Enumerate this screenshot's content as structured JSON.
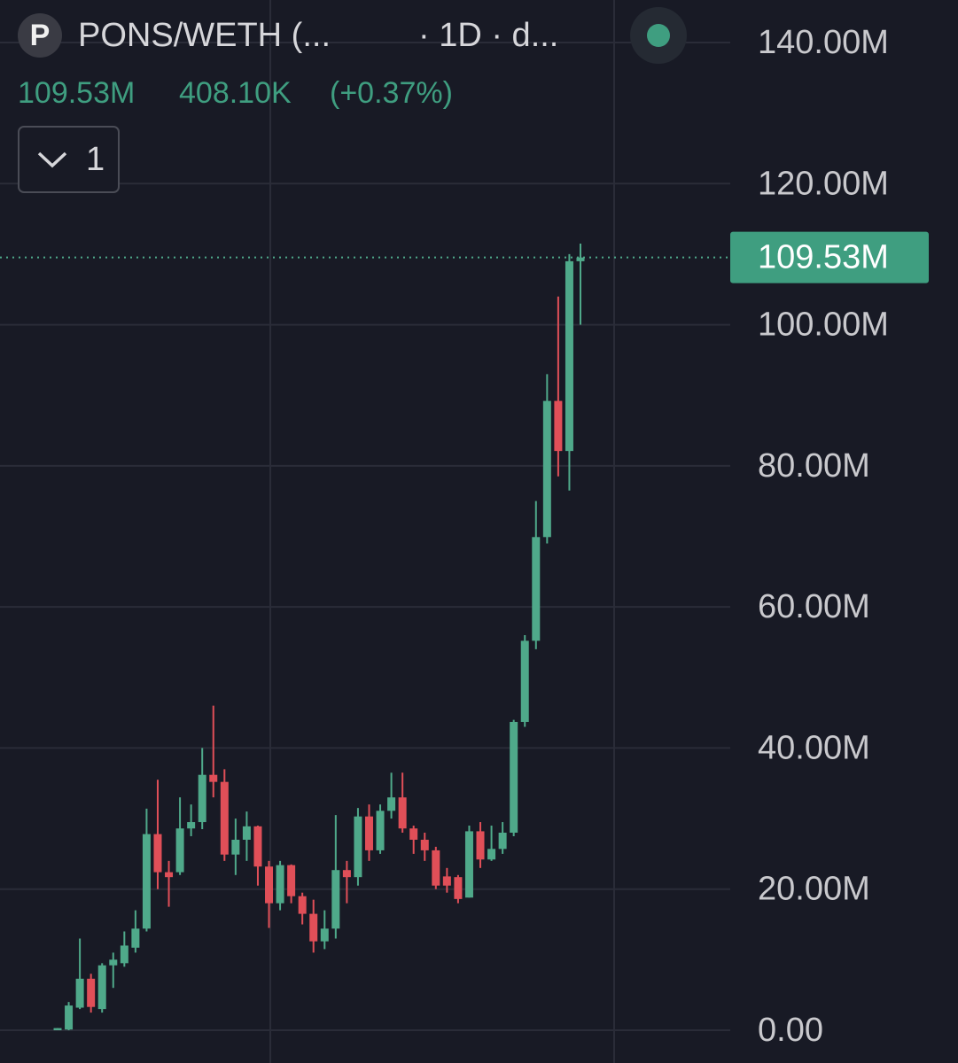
{
  "chart_data": {
    "type": "candlestick",
    "header": {
      "symbol": "PONS/WETH (...",
      "interval": "· 1D · d...",
      "price": "109.53M",
      "change": "408.10K",
      "change_pct": "(+0.37%)",
      "indicator_count": "1"
    },
    "logo": "P",
    "open": [
      0,
      0.1,
      3.2,
      7.3,
      3,
      9.2,
      9.5,
      11.7,
      14.4,
      27.8,
      22.4,
      22.4,
      28.6,
      29.5,
      36.2,
      35.2,
      24.9,
      27,
      28.9,
      23.2,
      18,
      23.4,
      19,
      16.5,
      12.6,
      14.4,
      22.7,
      21.7,
      30.3,
      25.5,
      31.1,
      33,
      28.6,
      27,
      25.5,
      21.8,
      21.7,
      18.8,
      28.2,
      24.2,
      25.7,
      28,
      43.7,
      55.2,
      69.9,
      89.2,
      82.1,
      109
    ],
    "high": [
      0.3,
      4,
      13,
      8,
      9.5,
      11,
      14,
      17,
      31.4,
      35.5,
      24,
      33,
      32,
      40,
      46,
      37,
      30,
      31,
      29,
      24,
      24,
      23.5,
      19.5,
      18.5,
      17,
      30.5,
      24,
      31.5,
      32,
      32,
      36.5,
      36.5,
      29,
      28,
      26,
      23,
      22,
      29,
      29.5,
      29,
      29.5,
      44,
      56,
      75,
      93,
      104,
      110,
      111.5
    ],
    "low": [
      0,
      0,
      3,
      2.5,
      2.5,
      6,
      9,
      11,
      14,
      20,
      17.5,
      22,
      27.5,
      28.5,
      33,
      24,
      22,
      24,
      20.5,
      14.5,
      17,
      18,
      15,
      11,
      11.5,
      13,
      18,
      20.5,
      24,
      25,
      30,
      28,
      25,
      24,
      20,
      19.5,
      18,
      18.8,
      23,
      24,
      25,
      27.5,
      43,
      54,
      69,
      78.5,
      76.5,
      100
    ],
    "close": [
      0.3,
      3.5,
      7.3,
      3.3,
      9.2,
      10,
      12,
      14.4,
      27.8,
      22.4,
      21.7,
      28.6,
      29.5,
      36.2,
      35.2,
      24.9,
      27,
      28.9,
      23.2,
      18,
      23.4,
      19,
      16.5,
      12.6,
      14.4,
      22.7,
      21.7,
      30.3,
      25.5,
      31.1,
      33,
      28.6,
      27,
      25.5,
      20.5,
      20.5,
      18.6,
      28.2,
      24.2,
      25.7,
      28,
      43.7,
      55.2,
      69.9,
      89.2,
      82.1,
      109,
      109.53
    ],
    "up_color": "#4fa98a",
    "down_color": "#e04f58",
    "last_price": {
      "value": 109.53,
      "label": "109.53M"
    },
    "ylim": [
      0,
      140
    ],
    "yticks": [
      {
        "value": 0,
        "label": "0.00"
      },
      {
        "value": 20,
        "label": "20.00M"
      },
      {
        "value": 40,
        "label": "40.00M"
      },
      {
        "value": 60,
        "label": "60.00M"
      },
      {
        "value": 80,
        "label": "80.00M"
      },
      {
        "value": 100,
        "label": "100.00M"
      },
      {
        "value": 120,
        "label": "120.00M"
      },
      {
        "value": 140,
        "label": "140.00M"
      }
    ],
    "grid": true
  }
}
